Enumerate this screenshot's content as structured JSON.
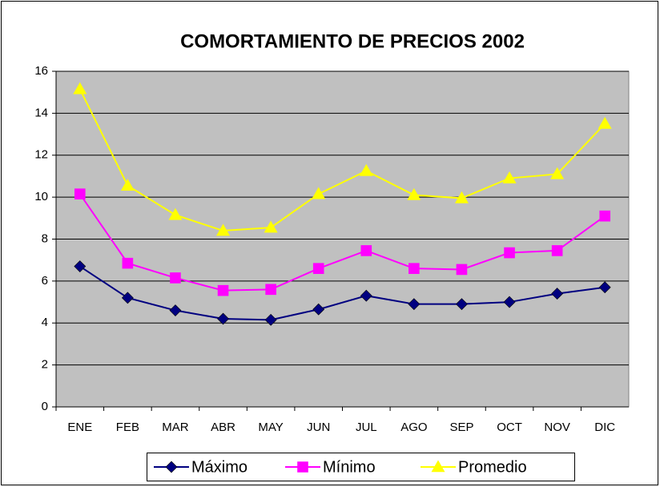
{
  "chart_data": {
    "type": "line",
    "title": "COMORTAMIENTO DE PRECIOS 2002",
    "categories": [
      "ENE",
      "FEB",
      "MAR",
      "ABR",
      "MAY",
      "JUN",
      "JUL",
      "AGO",
      "SEP",
      "OCT",
      "NOV",
      "DIC"
    ],
    "series": [
      {
        "name": "Máximo",
        "color": "#000080",
        "marker": "diamond",
        "values": [
          6.7,
          5.2,
          4.6,
          4.2,
          4.15,
          4.65,
          5.3,
          4.9,
          4.9,
          5.0,
          5.4,
          5.7
        ]
      },
      {
        "name": "Mínimo",
        "color": "#ff00ff",
        "marker": "square",
        "values": [
          10.15,
          6.85,
          6.15,
          5.55,
          5.6,
          6.6,
          7.45,
          6.6,
          6.55,
          7.35,
          7.45,
          9.1
        ]
      },
      {
        "name": "Promedio",
        "color": "#ffff00",
        "marker": "triangle",
        "values": [
          15.15,
          10.55,
          9.15,
          8.4,
          8.55,
          10.15,
          11.25,
          10.1,
          9.95,
          10.9,
          11.1,
          13.5
        ]
      }
    ],
    "ylim": [
      0,
      16
    ],
    "yticks": [
      0,
      2,
      4,
      6,
      8,
      10,
      12,
      14,
      16
    ],
    "grid": true,
    "legend": "bottom"
  }
}
